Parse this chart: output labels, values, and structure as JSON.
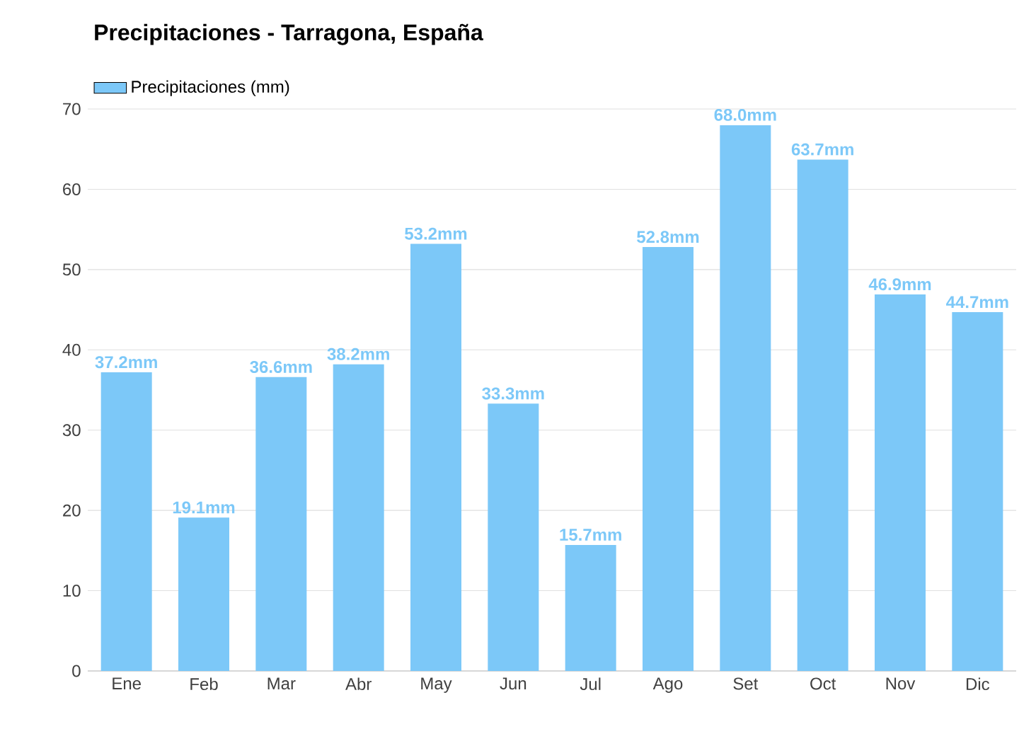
{
  "chart_data": {
    "type": "bar",
    "title": "Precipitaciones - Tarragona, España",
    "categories": [
      "Ene",
      "Feb",
      "Mar",
      "Abr",
      "May",
      "Jun",
      "Jul",
      "Ago",
      "Set",
      "Oct",
      "Nov",
      "Dic"
    ],
    "series": [
      {
        "name": "Precipitaciones (mm)",
        "color": "#7cc8f8",
        "values": [
          37.2,
          19.1,
          36.6,
          38.2,
          53.2,
          33.3,
          15.7,
          52.8,
          68.0,
          63.7,
          46.9,
          44.7
        ],
        "value_labels": [
          "37.2mm",
          "19.1mm",
          "36.6mm",
          "38.2mm",
          "53.2mm",
          "33.3mm",
          "15.7mm",
          "52.8mm",
          "68.0mm",
          "63.7mm",
          "46.9mm",
          "44.7mm"
        ]
      }
    ],
    "ylim": [
      0,
      70
    ],
    "yticks": [
      0,
      10,
      20,
      30,
      40,
      50,
      60,
      70
    ],
    "grid": "y",
    "legend": "top left"
  }
}
